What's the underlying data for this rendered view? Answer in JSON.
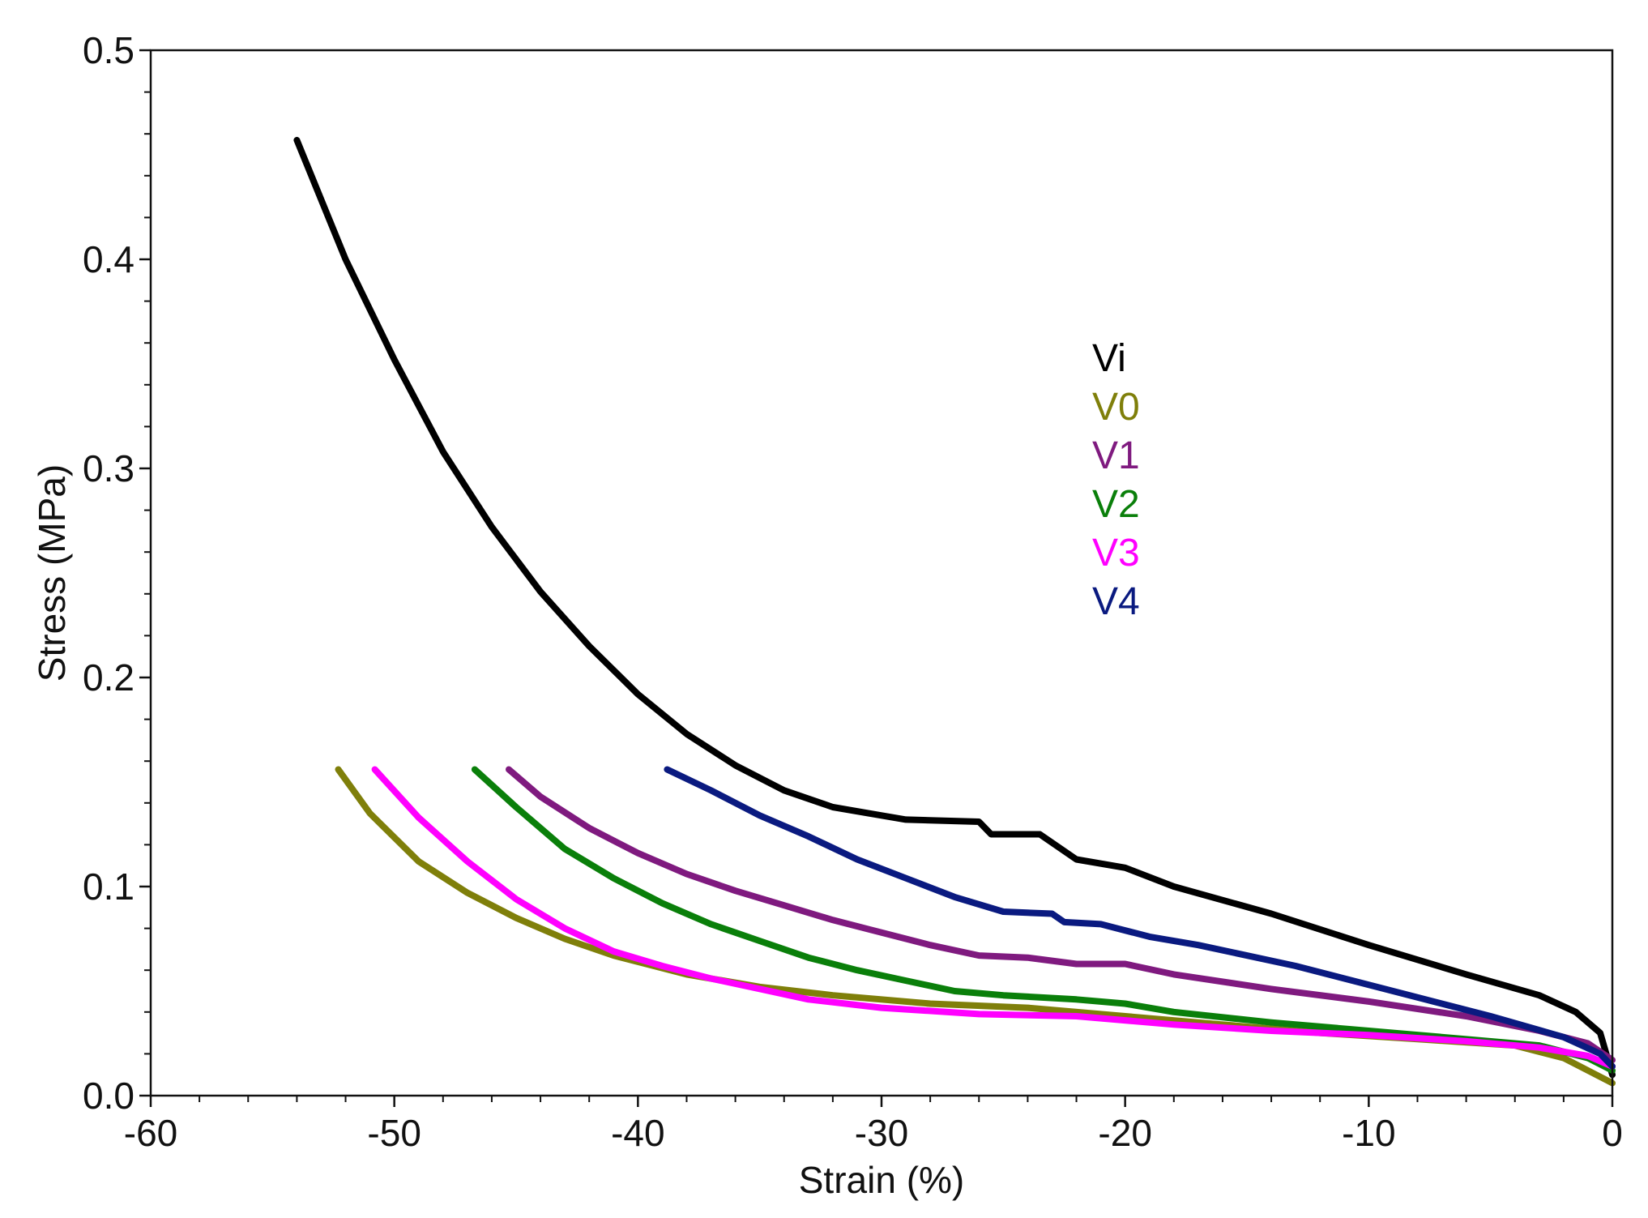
{
  "chart_data": {
    "type": "line",
    "title": "",
    "xlabel": "Strain (%)",
    "ylabel": "Stress (MPa)",
    "xlim": [
      -60,
      0
    ],
    "ylim": [
      0,
      0.5
    ],
    "xticks": [
      -60,
      -50,
      -40,
      -30,
      -20,
      -10,
      0
    ],
    "xtick_labels": [
      "-60",
      "-50",
      "-40",
      "-30",
      "-20",
      "-10",
      "0"
    ],
    "yticks": [
      0,
      0.1,
      0.2,
      0.3,
      0.4,
      0.5
    ],
    "ytick_labels": [
      "0.0",
      "0.1",
      "0.2",
      "0.3",
      "0.4",
      "0.5"
    ],
    "grid": false,
    "legend_position": "center-right",
    "series": [
      {
        "name": "Vi",
        "color": "#000000",
        "points": [
          [
            -54.0,
            0.457
          ],
          [
            -52.0,
            0.4
          ],
          [
            -50.0,
            0.352
          ],
          [
            -48.0,
            0.308
          ],
          [
            -46.0,
            0.272
          ],
          [
            -44.0,
            0.241
          ],
          [
            -42.0,
            0.215
          ],
          [
            -40.0,
            0.192
          ],
          [
            -38.0,
            0.173
          ],
          [
            -36.0,
            0.158
          ],
          [
            -34.0,
            0.146
          ],
          [
            -32.0,
            0.138
          ],
          [
            -30.0,
            0.134
          ],
          [
            -29.0,
            0.132
          ],
          [
            -26.0,
            0.131
          ],
          [
            -25.5,
            0.125
          ],
          [
            -23.5,
            0.125
          ],
          [
            -22.0,
            0.113
          ],
          [
            -20.0,
            0.109
          ],
          [
            -18.0,
            0.1
          ],
          [
            -14.0,
            0.087
          ],
          [
            -10.0,
            0.072
          ],
          [
            -6.0,
            0.058
          ],
          [
            -3.0,
            0.048
          ],
          [
            -1.5,
            0.04
          ],
          [
            -0.5,
            0.03
          ],
          [
            0.0,
            0.01
          ]
        ]
      },
      {
        "name": "V0",
        "color": "#7f7f0a",
        "points": [
          [
            -52.3,
            0.156
          ],
          [
            -51.0,
            0.135
          ],
          [
            -49.0,
            0.112
          ],
          [
            -47.0,
            0.097
          ],
          [
            -45.0,
            0.085
          ],
          [
            -43.0,
            0.075
          ],
          [
            -41.0,
            0.067
          ],
          [
            -38.0,
            0.058
          ],
          [
            -35.0,
            0.052
          ],
          [
            -32.0,
            0.048
          ],
          [
            -28.0,
            0.044
          ],
          [
            -24.0,
            0.042
          ],
          [
            -20.0,
            0.038
          ],
          [
            -16.0,
            0.034
          ],
          [
            -12.0,
            0.03
          ],
          [
            -8.0,
            0.027
          ],
          [
            -4.0,
            0.024
          ],
          [
            -2.0,
            0.018
          ],
          [
            -1.0,
            0.012
          ],
          [
            0.0,
            0.006
          ]
        ]
      },
      {
        "name": "V1",
        "color": "#7f1a7f",
        "points": [
          [
            -45.3,
            0.156
          ],
          [
            -44.0,
            0.143
          ],
          [
            -42.0,
            0.128
          ],
          [
            -40.0,
            0.116
          ],
          [
            -38.0,
            0.106
          ],
          [
            -36.0,
            0.098
          ],
          [
            -34.0,
            0.091
          ],
          [
            -32.0,
            0.084
          ],
          [
            -30.0,
            0.078
          ],
          [
            -28.0,
            0.072
          ],
          [
            -26.0,
            0.067
          ],
          [
            -24.0,
            0.066
          ],
          [
            -22.0,
            0.063
          ],
          [
            -20.0,
            0.063
          ],
          [
            -18.0,
            0.058
          ],
          [
            -14.0,
            0.051
          ],
          [
            -10.0,
            0.045
          ],
          [
            -6.0,
            0.038
          ],
          [
            -3.0,
            0.031
          ],
          [
            -1.0,
            0.025
          ],
          [
            0.0,
            0.017
          ]
        ]
      },
      {
        "name": "V2",
        "color": "#0a7f0a",
        "points": [
          [
            -46.7,
            0.156
          ],
          [
            -45.0,
            0.138
          ],
          [
            -43.0,
            0.118
          ],
          [
            -41.0,
            0.104
          ],
          [
            -39.0,
            0.092
          ],
          [
            -37.0,
            0.082
          ],
          [
            -35.0,
            0.074
          ],
          [
            -33.0,
            0.066
          ],
          [
            -31.0,
            0.06
          ],
          [
            -29.0,
            0.055
          ],
          [
            -27.0,
            0.05
          ],
          [
            -25.0,
            0.048
          ],
          [
            -22.0,
            0.046
          ],
          [
            -20.0,
            0.044
          ],
          [
            -18.0,
            0.04
          ],
          [
            -14.0,
            0.035
          ],
          [
            -10.0,
            0.031
          ],
          [
            -6.0,
            0.027
          ],
          [
            -3.0,
            0.024
          ],
          [
            -1.0,
            0.018
          ],
          [
            0.0,
            0.012
          ]
        ]
      },
      {
        "name": "V3",
        "color": "#ff00ff",
        "points": [
          [
            -50.8,
            0.156
          ],
          [
            -49.0,
            0.133
          ],
          [
            -47.0,
            0.112
          ],
          [
            -45.0,
            0.094
          ],
          [
            -43.0,
            0.08
          ],
          [
            -41.0,
            0.069
          ],
          [
            -39.0,
            0.062
          ],
          [
            -37.0,
            0.056
          ],
          [
            -35.0,
            0.051
          ],
          [
            -33.0,
            0.046
          ],
          [
            -30.0,
            0.042
          ],
          [
            -26.0,
            0.039
          ],
          [
            -22.0,
            0.038
          ],
          [
            -18.0,
            0.034
          ],
          [
            -14.0,
            0.031
          ],
          [
            -10.0,
            0.029
          ],
          [
            -6.0,
            0.026
          ],
          [
            -3.0,
            0.023
          ],
          [
            -1.0,
            0.019
          ],
          [
            0.0,
            0.014
          ]
        ]
      },
      {
        "name": "V4",
        "color": "#0a1a80",
        "points": [
          [
            -38.8,
            0.156
          ],
          [
            -37.0,
            0.146
          ],
          [
            -35.0,
            0.134
          ],
          [
            -33.0,
            0.124
          ],
          [
            -31.0,
            0.113
          ],
          [
            -29.0,
            0.104
          ],
          [
            -27.0,
            0.095
          ],
          [
            -25.0,
            0.088
          ],
          [
            -23.0,
            0.087
          ],
          [
            -22.5,
            0.083
          ],
          [
            -21.0,
            0.082
          ],
          [
            -19.0,
            0.076
          ],
          [
            -17.0,
            0.072
          ],
          [
            -13.0,
            0.062
          ],
          [
            -9.0,
            0.05
          ],
          [
            -5.0,
            0.038
          ],
          [
            -2.0,
            0.028
          ],
          [
            -0.5,
            0.02
          ],
          [
            0.0,
            0.014
          ]
        ]
      }
    ]
  }
}
